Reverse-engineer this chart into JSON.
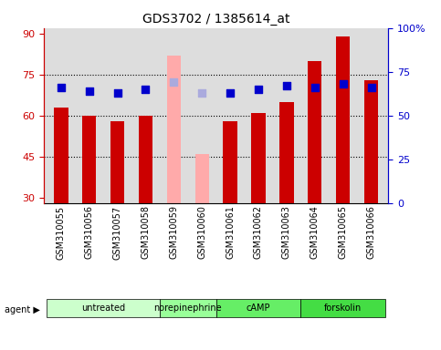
{
  "title": "GDS3702 / 1385614_at",
  "samples": [
    "GSM310055",
    "GSM310056",
    "GSM310057",
    "GSM310058",
    "GSM310059",
    "GSM310060",
    "GSM310061",
    "GSM310062",
    "GSM310063",
    "GSM310064",
    "GSM310065",
    "GSM310066"
  ],
  "bar_values": [
    63,
    60,
    58,
    60,
    82,
    46,
    58,
    61,
    65,
    80,
    89,
    73
  ],
  "bar_colors": [
    "#cc0000",
    "#cc0000",
    "#cc0000",
    "#cc0000",
    "#ffaaaa",
    "#ffaaaa",
    "#cc0000",
    "#cc0000",
    "#cc0000",
    "#cc0000",
    "#cc0000",
    "#cc0000"
  ],
  "dot_values": [
    65,
    63,
    63,
    65,
    67,
    62,
    63,
    64,
    66,
    66,
    67,
    66
  ],
  "dot_colors": [
    "#0000cc",
    "#0000cc",
    "#0000cc",
    "#0000cc",
    "#aaaadd",
    "#aaaadd",
    "#0000cc",
    "#0000cc",
    "#0000cc",
    "#0000cc",
    "#0000cc",
    "#0000cc"
  ],
  "absent_flags": [
    false,
    false,
    false,
    false,
    true,
    true,
    false,
    false,
    false,
    false,
    false,
    false
  ],
  "agents": [
    {
      "label": "untreated",
      "start": 0,
      "end": 3
    },
    {
      "label": "norepinephrine",
      "start": 3,
      "end": 5
    },
    {
      "label": "cAMP",
      "start": 6,
      "end": 8
    },
    {
      "label": "forskolin",
      "start": 8,
      "end": 11
    }
  ],
  "ylim_left": [
    28,
    92
  ],
  "yticks_left": [
    30,
    45,
    60,
    75,
    90
  ],
  "ylim_right": [
    0,
    100
  ],
  "yticks_right": [
    0,
    25,
    50,
    75,
    100
  ],
  "bar_width": 0.5,
  "dot_size": 40,
  "agent_colors": [
    "#ccffcc",
    "#99ff99"
  ],
  "background_color": "#ffffff",
  "plot_bg_color": "#dddddd",
  "grid_color": "black",
  "left_axis_color": "#cc0000",
  "right_axis_color": "#0000cc"
}
